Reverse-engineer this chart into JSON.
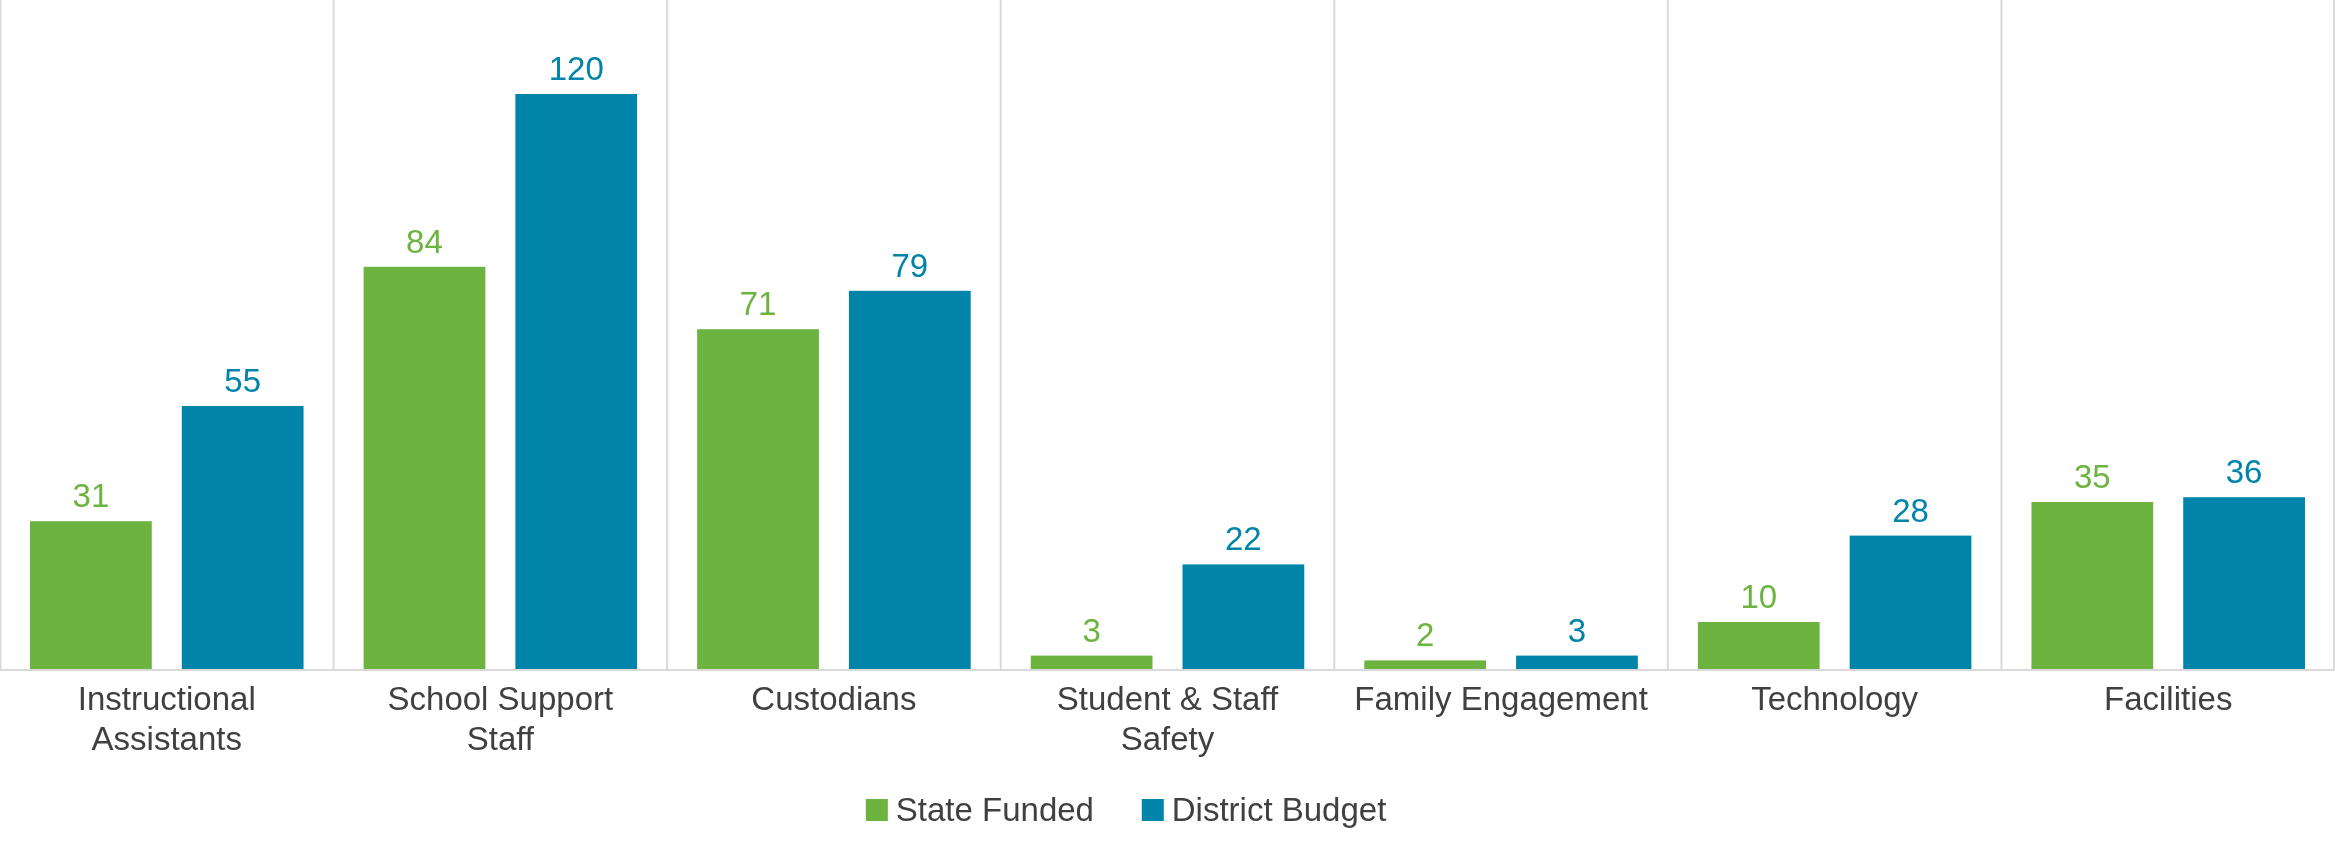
{
  "chart_data": {
    "type": "bar",
    "categories": [
      "Instructional Assistants",
      "School Support Staff",
      "Custodians",
      "Student & Staff Safety",
      "Family Engagement",
      "Technology",
      "Facilities"
    ],
    "series": [
      {
        "name": "State Funded",
        "color": "#6db33f",
        "values": [
          31,
          84,
          71,
          3,
          2,
          10,
          35
        ]
      },
      {
        "name": "District Budget",
        "color": "#0084a9",
        "values": [
          55,
          120,
          79,
          22,
          3,
          28,
          36
        ]
      }
    ],
    "data_labels": true,
    "grid": "x",
    "legend": "bottom"
  }
}
